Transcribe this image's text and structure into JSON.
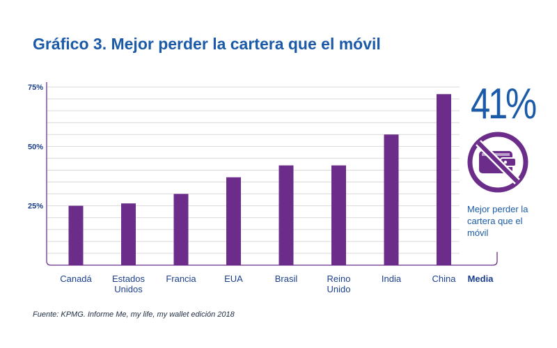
{
  "header": {
    "title": "Gráfico 3. Mejor perder la cartera que el móvil"
  },
  "callout": {
    "value_text": "41%",
    "value": 41,
    "caption": "Mejor perder la cartera que el móvil",
    "icon": "crossed-out-wallet-icon"
  },
  "footer": {
    "source": "Fuente: KPMG. Informe Me, my life, my wallet edición 2018"
  },
  "colors": {
    "bar": "#6b2c8a",
    "text": "#1a5aa8",
    "grid": "#d9d9d9"
  },
  "chart_data": {
    "type": "bar",
    "title": "Gráfico 3. Mejor perder la cartera que el móvil",
    "xlabel": "",
    "ylabel": "",
    "ylim": [
      0,
      75
    ],
    "yticks": [
      25,
      50,
      75
    ],
    "ytick_labels": [
      "25%",
      "50%",
      "75%"
    ],
    "grid": true,
    "categories": [
      [
        "Canadá"
      ],
      [
        "Estados",
        "Unidos"
      ],
      [
        "Francia"
      ],
      [
        "EUA"
      ],
      [
        "Brasil"
      ],
      [
        "Reino",
        "Unido"
      ],
      [
        "India"
      ],
      [
        "China"
      ]
    ],
    "values": [
      25,
      26,
      30,
      37,
      42,
      42,
      55,
      72
    ],
    "summary_category": "Media",
    "summary_value": 41
  }
}
